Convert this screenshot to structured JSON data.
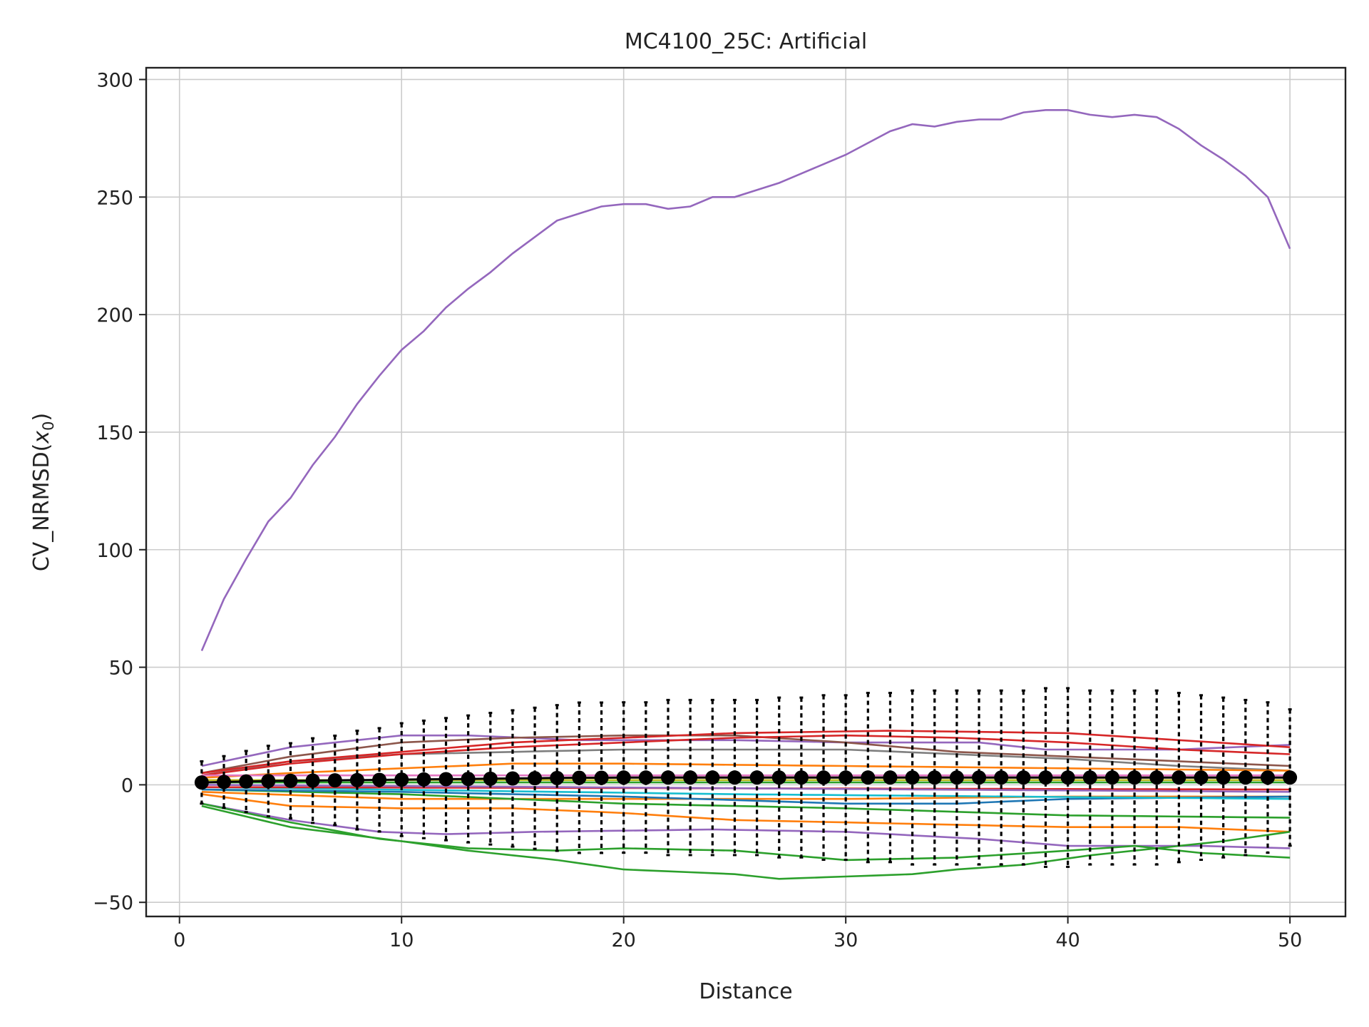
{
  "chart_data": {
    "type": "line",
    "title": "MC4100_25C: Artificial",
    "xlabel": "Distance",
    "ylabel_prefix": "CV_NRMSD(",
    "ylabel_var": "x",
    "ylabel_sub": "0",
    "ylabel_suffix": ")",
    "xlim": [
      -1.5,
      52.5
    ],
    "ylim": [
      -56,
      305
    ],
    "x_ticks": [
      0,
      10,
      20,
      30,
      40,
      50
    ],
    "y_ticks": [
      -50,
      0,
      50,
      100,
      150,
      200,
      250,
      300
    ],
    "x_tick_labels": [
      "0",
      "10",
      "20",
      "30",
      "40",
      "50"
    ],
    "y_tick_labels": [
      "−50",
      "0",
      "50",
      "100",
      "150",
      "200",
      "250",
      "300"
    ],
    "grid": true,
    "x_start": 1,
    "x_step": 1,
    "series": [
      {
        "color": "#9467bd",
        "values": [
          57,
          79,
          96,
          112,
          122,
          136,
          148,
          162,
          174,
          185,
          193,
          203,
          211,
          218,
          226,
          233,
          240,
          243,
          246,
          247,
          247,
          245,
          246,
          250,
          250,
          253,
          256,
          260,
          264,
          268,
          273,
          278,
          281,
          280,
          282,
          283,
          283,
          286,
          287,
          287,
          285,
          284,
          285,
          284,
          279,
          272,
          266,
          259,
          250,
          228
        ]
      },
      {
        "color": "#9467bd",
        "knots": [
          [
            1,
            8
          ],
          [
            5,
            16
          ],
          [
            10,
            21
          ],
          [
            13,
            21
          ],
          [
            18,
            19
          ],
          [
            25,
            19
          ],
          [
            30,
            18
          ],
          [
            36,
            18
          ],
          [
            39,
            15
          ],
          [
            45,
            15
          ],
          [
            50,
            17
          ]
        ]
      },
      {
        "color": "#9467bd",
        "knots": [
          [
            1,
            -8
          ],
          [
            5,
            -15
          ],
          [
            9,
            -20
          ],
          [
            12,
            -21
          ],
          [
            16,
            -20
          ],
          [
            24,
            -19
          ],
          [
            30,
            -20
          ],
          [
            36,
            -23
          ],
          [
            40,
            -26
          ],
          [
            46,
            -26
          ],
          [
            50,
            -27
          ]
        ]
      },
      {
        "color": "#8c564b",
        "knots": [
          [
            1,
            5
          ],
          [
            5,
            12
          ],
          [
            10,
            18
          ],
          [
            15,
            20
          ],
          [
            20,
            21
          ],
          [
            25,
            21
          ],
          [
            30,
            18
          ],
          [
            35,
            14
          ],
          [
            40,
            12
          ],
          [
            45,
            10
          ],
          [
            50,
            8
          ]
        ]
      },
      {
        "color": "#7f7f7f",
        "knots": [
          [
            1,
            4
          ],
          [
            5,
            10
          ],
          [
            10,
            13
          ],
          [
            15,
            14
          ],
          [
            20,
            15
          ],
          [
            30,
            15
          ],
          [
            35,
            13
          ],
          [
            40,
            11
          ],
          [
            45,
            8
          ],
          [
            50,
            6
          ]
        ]
      },
      {
        "color": "#d62728",
        "knots": [
          [
            1,
            5
          ],
          [
            5,
            10
          ],
          [
            10,
            14
          ],
          [
            15,
            18
          ],
          [
            20,
            20
          ],
          [
            25,
            22
          ],
          [
            32,
            23
          ],
          [
            40,
            22
          ],
          [
            45,
            19
          ],
          [
            50,
            16
          ]
        ]
      },
      {
        "color": "#d62728",
        "knots": [
          [
            1,
            4
          ],
          [
            5,
            9
          ],
          [
            10,
            13
          ],
          [
            15,
            16
          ],
          [
            20,
            18
          ],
          [
            25,
            20
          ],
          [
            30,
            21
          ],
          [
            35,
            20
          ],
          [
            40,
            18
          ],
          [
            45,
            15
          ],
          [
            50,
            13
          ]
        ]
      },
      {
        "color": "#ff7f0e",
        "knots": [
          [
            1,
            3
          ],
          [
            5,
            5
          ],
          [
            10,
            7
          ],
          [
            15,
            9
          ],
          [
            20,
            9
          ],
          [
            30,
            8
          ],
          [
            40,
            7
          ],
          [
            50,
            6
          ]
        ]
      },
      {
        "color": "#ff7f0e",
        "knots": [
          [
            1,
            -4
          ],
          [
            5,
            -9
          ],
          [
            10,
            -10
          ],
          [
            15,
            -10
          ],
          [
            20,
            -12
          ],
          [
            25,
            -15
          ],
          [
            30,
            -16
          ],
          [
            35,
            -17
          ],
          [
            40,
            -18
          ],
          [
            45,
            -18
          ],
          [
            50,
            -20
          ]
        ]
      },
      {
        "color": "#ff7f0e",
        "knots": [
          [
            1,
            -3
          ],
          [
            10,
            -6
          ],
          [
            20,
            -6
          ],
          [
            30,
            -6
          ],
          [
            40,
            -5
          ],
          [
            50,
            -5
          ]
        ]
      },
      {
        "color": "#2ca02c",
        "knots": [
          [
            1,
            -9
          ],
          [
            5,
            -18
          ],
          [
            10,
            -24
          ],
          [
            13,
            -28
          ],
          [
            17,
            -32
          ],
          [
            20,
            -36
          ],
          [
            25,
            -38
          ],
          [
            27,
            -40
          ],
          [
            30,
            -39
          ],
          [
            33,
            -38
          ],
          [
            35,
            -36
          ],
          [
            38,
            -34
          ],
          [
            41,
            -30
          ],
          [
            44,
            -27
          ],
          [
            47,
            -24
          ],
          [
            50,
            -20
          ]
        ]
      },
      {
        "color": "#2ca02c",
        "knots": [
          [
            1,
            -8
          ],
          [
            5,
            -16
          ],
          [
            9,
            -23
          ],
          [
            13,
            -27
          ],
          [
            17,
            -28
          ],
          [
            20,
            -27
          ],
          [
            25,
            -28
          ],
          [
            30,
            -32
          ],
          [
            35,
            -31
          ],
          [
            40,
            -28
          ],
          [
            43,
            -26
          ],
          [
            46,
            -29
          ],
          [
            50,
            -31
          ]
        ]
      },
      {
        "color": "#2ca02c",
        "knots": [
          [
            1,
            -2
          ],
          [
            10,
            -4
          ],
          [
            20,
            -8
          ],
          [
            30,
            -10
          ],
          [
            40,
            -13
          ],
          [
            50,
            -14
          ]
        ]
      },
      {
        "color": "#2ca02c",
        "knots": [
          [
            1,
            1
          ],
          [
            50,
            1
          ]
        ]
      },
      {
        "color": "#1f77b4",
        "knots": [
          [
            1,
            -2
          ],
          [
            10,
            -3
          ],
          [
            20,
            -5
          ],
          [
            30,
            -8
          ],
          [
            35,
            -8
          ],
          [
            40,
            -6
          ],
          [
            50,
            -5
          ]
        ]
      },
      {
        "color": "#17becf",
        "knots": [
          [
            1,
            -1
          ],
          [
            25,
            -4
          ],
          [
            50,
            -6
          ]
        ]
      },
      {
        "color": "#e377c2",
        "knots": [
          [
            1,
            4
          ],
          [
            50,
            4
          ]
        ]
      },
      {
        "color": "#bcbd22",
        "knots": [
          [
            1,
            2
          ],
          [
            50,
            2
          ]
        ]
      },
      {
        "color": "#d62728",
        "knots": [
          [
            1,
            -1
          ],
          [
            50,
            -2
          ]
        ]
      },
      {
        "color": "#9467bd",
        "knots": [
          [
            1,
            0
          ],
          [
            50,
            -3
          ]
        ]
      }
    ],
    "mean": {
      "color": "#000000",
      "values": [
        1,
        1.2,
        1.4,
        1.6,
        1.7,
        1.8,
        1.9,
        2,
        2.1,
        2.2,
        2.3,
        2.4,
        2.5,
        2.6,
        2.7,
        2.8,
        2.9,
        3,
        3,
        3.1,
        3.1,
        3.1,
        3.1,
        3.1,
        3.1,
        3.1,
        3.1,
        3.1,
        3.1,
        3.1,
        3.1,
        3.1,
        3.1,
        3.1,
        3.1,
        3.1,
        3.1,
        3.1,
        3.1,
        3.1,
        3.1,
        3.1,
        3.1,
        3.1,
        3.1,
        3.1,
        3.1,
        3.1,
        3.1,
        3.1
      ],
      "err": [
        9,
        11,
        13,
        15,
        16,
        18,
        19,
        21,
        22,
        24,
        25,
        26,
        27,
        28,
        29,
        30,
        31,
        32,
        32,
        32,
        32,
        33,
        33,
        33,
        33,
        33,
        34,
        34,
        35,
        35,
        36,
        36,
        37,
        37,
        37,
        37,
        37,
        37,
        38,
        38,
        37,
        37,
        37,
        37,
        36,
        35,
        34,
        33,
        32,
        29
      ]
    }
  }
}
